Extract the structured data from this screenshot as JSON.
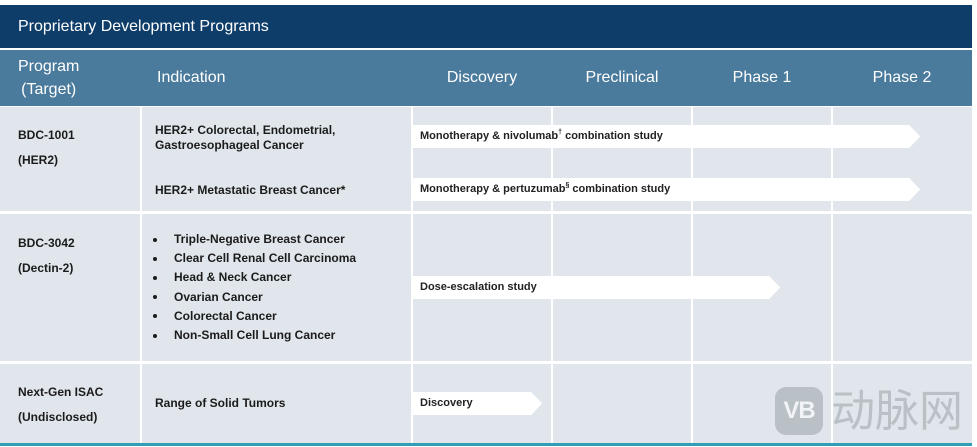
{
  "chart_data": {
    "type": "bar",
    "orientation": "horizontal",
    "title": "Proprietary Development Programs",
    "program_header": [
      "Program",
      "(Target)"
    ],
    "indication_header": "Indication",
    "stages": [
      "Discovery",
      "Preclinical",
      "Phase 1",
      "Phase 2"
    ],
    "grid": true,
    "programs": [
      {
        "name": "BDC-1001",
        "target": "(HER2)",
        "rows": [
          {
            "indication": [
              "HER2+ Colorectal, Endometrial,",
              "Gastroesophageal Cancer"
            ],
            "bar_label": "Monotherapy & nivolumab",
            "bar_label_sup": "†",
            "bar_label_end": " combination study",
            "end_stage": "Phase 2",
            "end_stage_fraction": 0.63
          },
          {
            "indication": [
              "HER2+ Metastatic Breast Cancer*"
            ],
            "bar_label": "Monotherapy & pertuzumab",
            "bar_label_sup": "§",
            "bar_label_end": " combination study",
            "end_stage": "Phase 2",
            "end_stage_fraction": 0.63
          }
        ]
      },
      {
        "name": "BDC-3042",
        "target": "(Dectin-2)",
        "rows": [
          {
            "indication_bullets": [
              "Triple-Negative Breast Cancer",
              "Clear Cell Renal Cell Carcinoma",
              "Head & Neck Cancer",
              "Ovarian Cancer",
              "Colorectal Cancer",
              "Non-Small Cell Lung Cancer"
            ],
            "bar_label": "Dose-escalation study",
            "end_stage": "Phase 1",
            "end_stage_fraction": 0.63
          }
        ]
      },
      {
        "name": "Next-Gen ISAC",
        "target": "(Undisclosed)",
        "rows": [
          {
            "indication": [
              "Range of Solid Tumors"
            ],
            "bar_label": "Discovery",
            "end_stage": "Discovery",
            "end_stage_fraction": 0.93
          }
        ]
      }
    ]
  },
  "colors": {
    "title_bar": "#0f3d6a",
    "header_bar": "#4a7a9c",
    "cell_background": "#e0e6eb",
    "bar_fill": "#ffffff",
    "bottom_rule": "#2e9fb5",
    "text": "#1b1b1b"
  },
  "watermark": {
    "mark": "VB",
    "name": "动脉网"
  }
}
